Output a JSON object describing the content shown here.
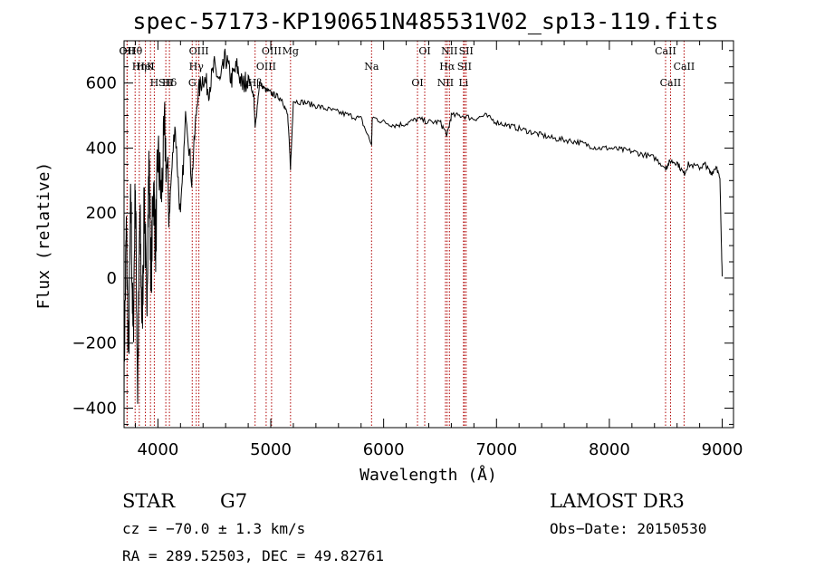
{
  "chart_data": {
    "type": "line",
    "title": "spec-57173-KP190651N485531V02_sp13-119.fits",
    "xlabel": "Wavelength (Å)",
    "ylabel": "Flux (relative)",
    "xlim": [
      3700,
      9100
    ],
    "ylim": [
      -460,
      730
    ],
    "xticks": [
      4000,
      5000,
      6000,
      7000,
      8000,
      9000
    ],
    "xtick_labels": [
      "4000",
      "5000",
      "6000",
      "7000",
      "8000",
      "9000"
    ],
    "yticks": [
      -400,
      -200,
      0,
      200,
      400,
      600
    ],
    "ytick_labels": [
      "−400",
      "−200",
      "0",
      "200",
      "400",
      "600"
    ],
    "spectrum": {
      "name": "Flux",
      "x": [
        3700,
        3720,
        3740,
        3760,
        3780,
        3800,
        3820,
        3840,
        3860,
        3880,
        3900,
        3920,
        3940,
        3960,
        3980,
        4000,
        4030,
        4060,
        4100,
        4150,
        4200,
        4250,
        4300,
        4350,
        4400,
        4450,
        4500,
        4550,
        4600,
        4650,
        4700,
        4750,
        4800,
        4850,
        4861,
        4900,
        4950,
        5000,
        5050,
        5100,
        5150,
        5175,
        5200,
        5300,
        5400,
        5500,
        5600,
        5700,
        5800,
        5893,
        5900,
        6000,
        6100,
        6200,
        6300,
        6400,
        6500,
        6563,
        6600,
        6700,
        6800,
        6900,
        7000,
        7100,
        7200,
        7300,
        7400,
        7500,
        7600,
        7700,
        7800,
        7900,
        8000,
        8100,
        8200,
        8300,
        8400,
        8498,
        8500,
        8542,
        8600,
        8662,
        8700,
        8800,
        8850,
        8900,
        8950,
        8980,
        9000
      ],
      "y": [
        -300,
        150,
        -250,
        250,
        -200,
        300,
        -350,
        200,
        -150,
        250,
        -100,
        350,
        0,
        300,
        100,
        380,
        250,
        450,
        200,
        480,
        180,
        520,
        300,
        560,
        620,
        580,
        650,
        600,
        680,
        610,
        650,
        590,
        620,
        560,
        460,
        600,
        580,
        570,
        560,
        550,
        500,
        340,
        545,
        540,
        530,
        520,
        510,
        500,
        490,
        410,
        495,
        480,
        470,
        475,
        490,
        480,
        480,
        440,
        500,
        500,
        490,
        500,
        480,
        470,
        460,
        450,
        440,
        430,
        425,
        420,
        410,
        400,
        400,
        395,
        390,
        380,
        370,
        340,
        340,
        360,
        355,
        320,
        350,
        340,
        350,
        320,
        345,
        300,
        5
      ],
      "color": "#000000"
    },
    "spectral_lines": [
      {
        "label": "Hθ",
        "wavelength": 3798
      },
      {
        "label": "K",
        "wavelength": 3934
      },
      {
        "label": "Hδ",
        "wavelength": 4102
      },
      {
        "label": "OII",
        "wavelength": 3727
      },
      {
        "label": "HeI",
        "wavelength": 3889
      },
      {
        "label": "SII",
        "wavelength": 4070
      },
      {
        "label": "OII",
        "wavelength": 3727
      },
      {
        "label": "Hη",
        "wavelength": 3835
      },
      {
        "label": "H",
        "wavelength": 3968
      },
      {
        "label": "OIII",
        "wavelength": 4363
      },
      {
        "label": "Hγ",
        "wavelength": 4340
      },
      {
        "label": "G",
        "wavelength": 4304
      },
      {
        "label": "OIII",
        "wavelength": 5007
      },
      {
        "label": "OIII",
        "wavelength": 4959
      },
      {
        "label": "Hβ",
        "wavelength": 4861
      },
      {
        "label": "Mg",
        "wavelength": 5175
      },
      {
        "label": "Na",
        "wavelength": 5893
      },
      {
        "label": "OI",
        "wavelength": 6300
      },
      {
        "label": "OI",
        "wavelength": 6364
      },
      {
        "label": "Hα",
        "wavelength": 6563
      },
      {
        "label": "NII",
        "wavelength": 6548
      },
      {
        "label": "NII",
        "wavelength": 6583
      },
      {
        "label": "SII",
        "wavelength": 6716
      },
      {
        "label": "Li",
        "wavelength": 6708
      },
      {
        "label": "SII",
        "wavelength": 6731
      },
      {
        "label": "CaII",
        "wavelength": 8662
      },
      {
        "label": "CaII",
        "wavelength": 8542
      },
      {
        "label": "CaII",
        "wavelength": 8498
      }
    ],
    "marker_color": "#b00000"
  },
  "info": {
    "object_class": "STAR",
    "subclass": "G7",
    "survey": "LAMOST DR3",
    "redshift_text": "cz = −70.0 ± 1.3 km/s",
    "obs_date": "Obs−Date: 20150530",
    "coords": "RA = 289.52503, DEC =  49.82761"
  }
}
